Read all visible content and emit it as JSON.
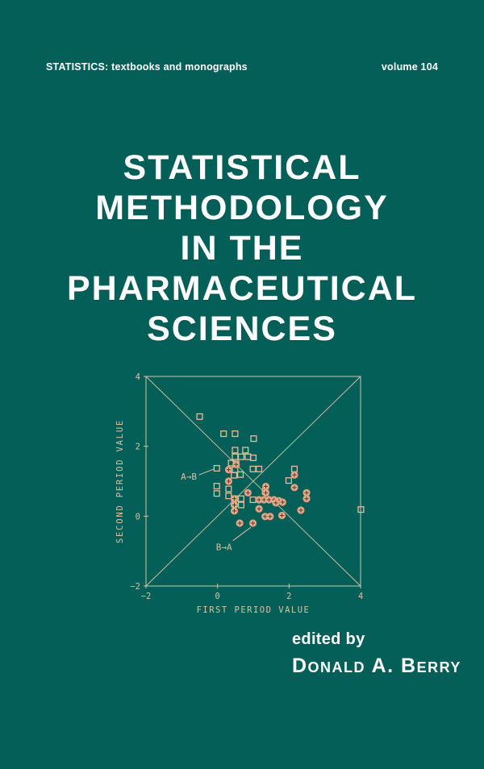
{
  "cover": {
    "series": "STATISTICS: textbooks and monographs",
    "volume": "volume 104",
    "title_lines": [
      "STATISTICAL",
      "METHODOLOGY",
      "IN THE",
      "PHARMACEUTICAL",
      "SCIENCES"
    ],
    "edited_by": "edited by",
    "editor": "Donald A. Berry"
  },
  "colors": {
    "background": "#045f58",
    "cover_text": "#ffffff",
    "chart_line": "#d6c3a0",
    "chart_text": "#d6c3a0",
    "square_stroke": "#e3bd9b",
    "circle_fill": "#edab8a",
    "circle_stroke": "#d99a78",
    "cross_stroke": "#454238"
  },
  "chart_data": {
    "type": "scatter",
    "xlabel": "FIRST PERIOD VALUE",
    "ylabel": "SECOND PERIOD VALUE",
    "xlim": [
      -2,
      4
    ],
    "ylim": [
      -2,
      4
    ],
    "xticks": [
      -2,
      0,
      2,
      4
    ],
    "yticks": [
      -2,
      0,
      2,
      4
    ],
    "grid": false,
    "diagonals": [
      [
        [
          -2,
          -2
        ],
        [
          4,
          4
        ]
      ],
      [
        [
          -2,
          4
        ],
        [
          4,
          -2
        ]
      ]
    ],
    "series": [
      {
        "name": "A→B",
        "marker": "square",
        "points": [
          [
            -0.5,
            2.85
          ],
          [
            0.17,
            2.36
          ],
          [
            0.49,
            2.36
          ],
          [
            1.01,
            2.22
          ],
          [
            0.49,
            1.89
          ],
          [
            0.78,
            1.89
          ],
          [
            0.49,
            1.7
          ],
          [
            0.66,
            1.7
          ],
          [
            0.85,
            1.7
          ],
          [
            1.0,
            1.67
          ],
          [
            0.38,
            1.52
          ],
          [
            0.52,
            1.5
          ],
          [
            -0.02,
            1.37
          ],
          [
            0.49,
            1.33
          ],
          [
            0.99,
            1.35
          ],
          [
            1.16,
            1.35
          ],
          [
            0.46,
            1.17
          ],
          [
            0.64,
            1.19
          ],
          [
            2.15,
            1.35
          ],
          [
            1.99,
            1.02
          ],
          [
            -0.02,
            0.86
          ],
          [
            -0.02,
            0.65
          ],
          [
            0.31,
            0.78
          ],
          [
            0.31,
            0.58
          ],
          [
            0.47,
            0.5
          ],
          [
            0.66,
            0.5
          ],
          [
            0.66,
            0.32
          ],
          [
            0.99,
            0.47
          ],
          [
            1.33,
            0.7
          ],
          [
            4.01,
            0.19
          ]
        ]
      },
      {
        "name": "B→A",
        "marker": "circle-plus",
        "points": [
          [
            0.31,
            1.33
          ],
          [
            0.31,
            1.0
          ],
          [
            0.52,
            1.48
          ],
          [
            0.85,
            0.67
          ],
          [
            1.35,
            0.85
          ],
          [
            1.35,
            0.67
          ],
          [
            1.16,
            0.47
          ],
          [
            1.3,
            0.47
          ],
          [
            1.44,
            0.47
          ],
          [
            1.58,
            0.47
          ],
          [
            1.72,
            0.44
          ],
          [
            1.63,
            0.38
          ],
          [
            1.82,
            0.4
          ],
          [
            0.47,
            0.5
          ],
          [
            0.47,
            0.32
          ],
          [
            0.47,
            0.15
          ],
          [
            1.16,
            0.21
          ],
          [
            1.33,
            -0.01
          ],
          [
            1.47,
            -0.01
          ],
          [
            1.8,
            0.02
          ],
          [
            0.62,
            -0.2
          ],
          [
            0.99,
            -0.2
          ],
          [
            2.15,
            1.18
          ],
          [
            2.15,
            0.82
          ],
          [
            2.49,
            0.67
          ],
          [
            2.49,
            0.5
          ],
          [
            2.33,
            0.17
          ]
        ]
      }
    ],
    "annotations": [
      {
        "label": "A→B",
        "label_x": -0.58,
        "label_y": 1.14,
        "anchor": "end",
        "line": [
          [
            -0.52,
            1.18
          ],
          [
            -0.1,
            1.35
          ]
        ]
      },
      {
        "label": "B→A",
        "label_x": 0.18,
        "label_y": -0.88,
        "anchor": "middle",
        "line": [
          [
            0.43,
            -0.7
          ],
          [
            0.93,
            -0.32
          ]
        ]
      }
    ]
  }
}
